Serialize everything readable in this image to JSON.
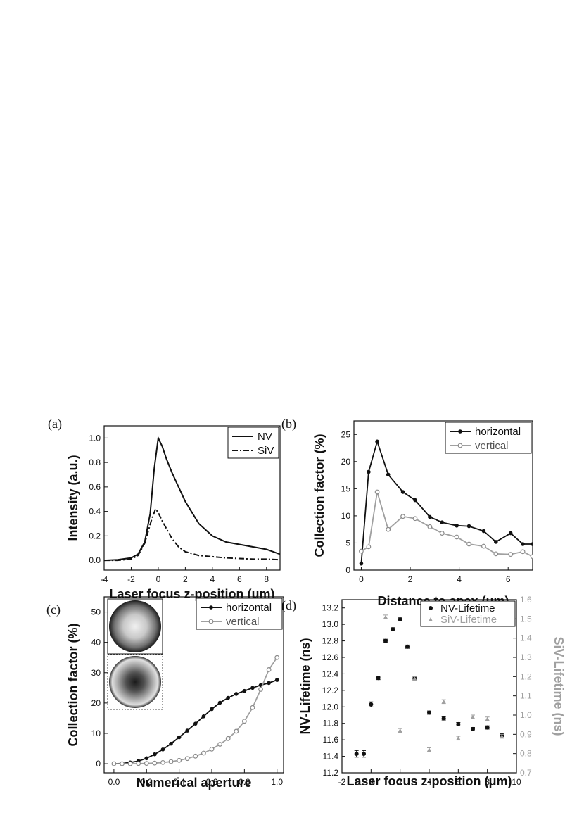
{
  "colors": {
    "black": "#111111",
    "gray": "#a0a0a0",
    "gray_dark": "#8a8a8a"
  },
  "chart_data": [
    {
      "panel": "(a)",
      "type": "line",
      "xlabel": "Laser focus z-position (μm)",
      "ylabel": "Intensity (a.u.)",
      "xlim": [
        -4,
        9
      ],
      "ylim": [
        -0.08,
        1.1
      ],
      "xticks": [
        "-4",
        "-2",
        "0",
        "2",
        "4",
        "6",
        "8"
      ],
      "yticks": [
        "0.0",
        "0.2",
        "0.4",
        "0.6",
        "0.8",
        "1.0"
      ],
      "legend_position": "top-right",
      "series": [
        {
          "name": "NV",
          "style": "solid",
          "x": [
            -4,
            -3,
            -2,
            -1.5,
            -1,
            -0.6,
            -0.3,
            0,
            0.3,
            0.6,
            1,
            1.5,
            2,
            2.5,
            3,
            4,
            5,
            6,
            7,
            8,
            9
          ],
          "y": [
            0.0,
            0.005,
            0.02,
            0.05,
            0.15,
            0.38,
            0.75,
            1.0,
            0.93,
            0.83,
            0.72,
            0.6,
            0.48,
            0.39,
            0.3,
            0.2,
            0.15,
            0.13,
            0.11,
            0.09,
            0.05
          ]
        },
        {
          "name": "SiV",
          "style": "dash-dot",
          "x": [
            -4,
            -3,
            -2,
            -1.5,
            -1,
            -0.5,
            -0.2,
            0,
            0.3,
            0.6,
            1,
            1.5,
            2,
            3,
            4,
            5,
            6,
            7,
            8,
            9
          ],
          "y": [
            0.0,
            0.0,
            0.01,
            0.04,
            0.14,
            0.33,
            0.42,
            0.39,
            0.32,
            0.26,
            0.18,
            0.11,
            0.07,
            0.04,
            0.03,
            0.02,
            0.015,
            0.01,
            0.01,
            0.005
          ]
        }
      ]
    },
    {
      "panel": "(b)",
      "type": "line",
      "xlabel": "Distance to apex (μm)",
      "ylabel": "Collection factor (%)",
      "xlim": [
        -0.3,
        7
      ],
      "ylim": [
        0,
        27.5
      ],
      "xticks": [
        "0",
        "2",
        "4",
        "6"
      ],
      "yticks": [
        "0",
        "5",
        "10",
        "15",
        "20",
        "25"
      ],
      "legend_position": "top-right",
      "series": [
        {
          "name": "horizontal",
          "x": [
            0,
            0.3,
            0.65,
            1.1,
            1.7,
            2.2,
            2.8,
            3.3,
            3.9,
            4.4,
            5.0,
            5.5,
            6.1,
            6.6,
            7.0
          ],
          "y": [
            1.2,
            18.1,
            23.7,
            17.6,
            14.4,
            12.9,
            9.8,
            8.8,
            8.2,
            8.1,
            7.2,
            5.2,
            6.8,
            4.8,
            4.8
          ]
        },
        {
          "name": "vertical",
          "x": [
            0,
            0.3,
            0.65,
            1.1,
            1.7,
            2.2,
            2.8,
            3.3,
            3.9,
            4.4,
            5.0,
            5.5,
            6.1,
            6.6,
            7.0
          ],
          "y": [
            3.5,
            4.3,
            14.4,
            7.5,
            9.9,
            9.5,
            8.0,
            6.8,
            6.1,
            4.8,
            4.4,
            3.0,
            2.9,
            3.4,
            2.5
          ]
        }
      ]
    },
    {
      "panel": "(c)",
      "type": "line",
      "xlabel": "Numerical aperture",
      "ylabel": "Collection factor (%)",
      "xlim": [
        -0.06,
        1.04
      ],
      "ylim": [
        -3,
        55
      ],
      "xticks": [
        "0.0",
        "0.2",
        "0.4",
        "0.6",
        "0.8",
        "1.0"
      ],
      "yticks": [
        "0",
        "10",
        "20",
        "30",
        "40",
        "50"
      ],
      "legend_position": "top-right",
      "series": [
        {
          "name": "horizontal",
          "x": [
            0,
            0.05,
            0.1,
            0.15,
            0.2,
            0.25,
            0.3,
            0.35,
            0.4,
            0.45,
            0.5,
            0.55,
            0.6,
            0.65,
            0.7,
            0.75,
            0.8,
            0.85,
            0.9,
            0.95,
            1.0
          ],
          "y": [
            0,
            0.1,
            0.4,
            0.9,
            1.8,
            3.1,
            4.7,
            6.6,
            8.7,
            10.9,
            13.2,
            15.6,
            18.0,
            20.1,
            21.7,
            23.0,
            24.0,
            25.0,
            25.9,
            26.6,
            27.6
          ]
        },
        {
          "name": "vertical",
          "x": [
            0,
            0.05,
            0.1,
            0.15,
            0.2,
            0.25,
            0.3,
            0.35,
            0.4,
            0.45,
            0.5,
            0.55,
            0.6,
            0.65,
            0.7,
            0.75,
            0.8,
            0.85,
            0.9,
            0.95,
            1.0
          ],
          "y": [
            0,
            0.0,
            0.0,
            0.05,
            0.1,
            0.2,
            0.4,
            0.7,
            1.1,
            1.7,
            2.5,
            3.5,
            4.8,
            6.4,
            8.3,
            10.7,
            14.0,
            18.5,
            24.5,
            31.0,
            35.0
          ]
        }
      ]
    },
    {
      "panel": "(d)",
      "type": "scatter",
      "xlabel": "Laser focus z-position (μm)",
      "ylabel": "NV-Lifetime (ns)",
      "y2label": "SiV-Lifetime (ns)",
      "xlim": [
        -2,
        10
      ],
      "ylim": [
        11.2,
        13.3
      ],
      "y2lim": [
        0.7,
        1.6
      ],
      "xticks": [
        "-2",
        "0",
        "2",
        "4",
        "6",
        "8",
        "10"
      ],
      "yticks": [
        "11.2",
        "11.4",
        "11.6",
        "11.8",
        "12.0",
        "12.2",
        "12.4",
        "12.6",
        "12.8",
        "13.0",
        "13.2"
      ],
      "y2ticks": [
        "0.7",
        "0.8",
        "0.9",
        "1.0",
        "1.1",
        "1.2",
        "1.3",
        "1.4",
        "1.5",
        "1.6"
      ],
      "legend_position": "top-right",
      "series": [
        {
          "name": "NV-Lifetime",
          "axis": "left",
          "x": [
            -1,
            -0.5,
            0,
            0.5,
            1,
            1.5,
            2,
            2.5,
            3,
            4,
            5,
            6,
            7,
            8,
            9
          ],
          "y": [
            11.43,
            11.43,
            12.03,
            12.35,
            12.8,
            12.94,
            13.06,
            12.73,
            12.34,
            11.93,
            11.86,
            11.79,
            11.73,
            11.75,
            11.66
          ],
          "err": [
            0.04,
            0.04,
            0.03,
            0.02,
            0.02,
            0.02,
            0.02,
            0.02,
            0.02,
            0.02,
            0.02,
            0.02,
            0.02,
            0.02,
            0.02
          ]
        },
        {
          "name": "SiV-Lifetime",
          "axis": "right",
          "x": [
            1,
            2,
            3,
            4,
            5,
            6,
            7,
            8,
            9
          ],
          "y": [
            1.51,
            0.92,
            1.19,
            0.82,
            1.07,
            0.88,
            0.99,
            0.98,
            0.89
          ],
          "err": [
            0.01,
            0.01,
            0.01,
            0.01,
            0.01,
            0.01,
            0.01,
            0.01,
            0.01
          ]
        }
      ]
    }
  ]
}
